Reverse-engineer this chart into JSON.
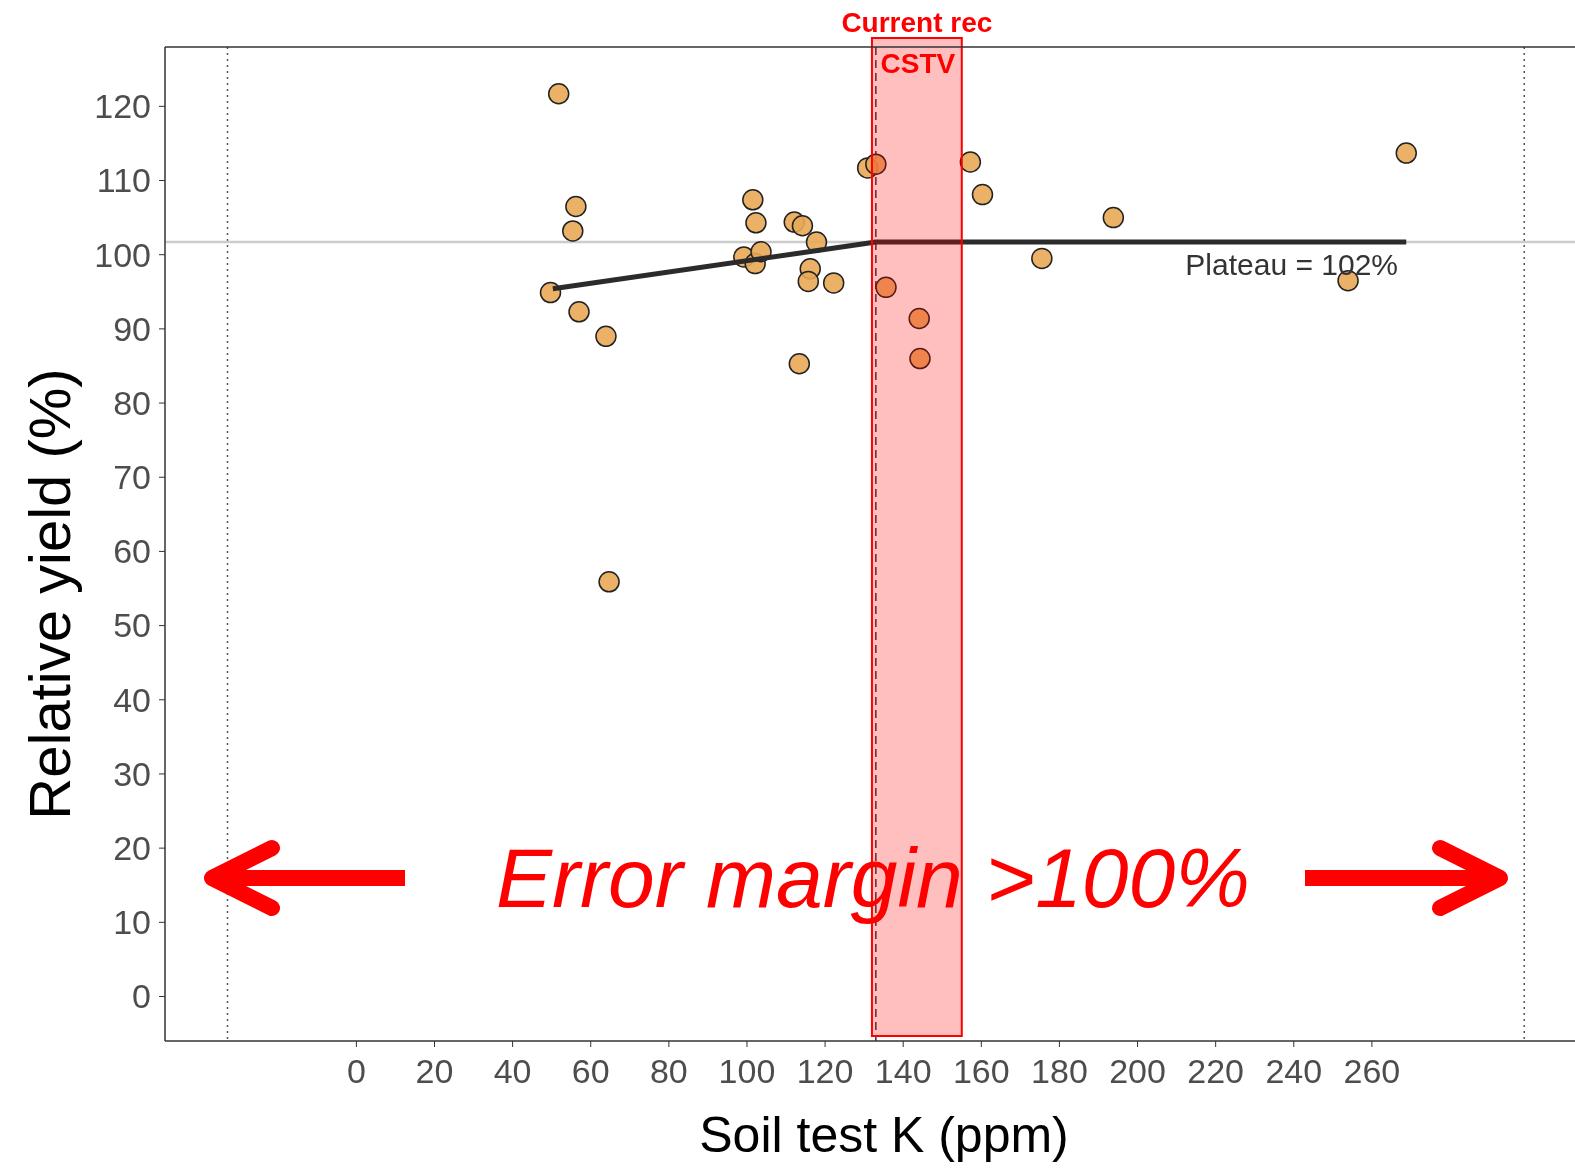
{
  "chart_data": {
    "type": "scatter",
    "xlabel": "Soil test K (ppm)",
    "ylabel": "Relative yield (%)",
    "xlim": [
      -49,
      312
    ],
    "ylim": [
      -6,
      128
    ],
    "xticks": [
      0,
      20,
      40,
      60,
      80,
      100,
      120,
      140,
      160,
      180,
      200,
      220,
      240,
      260
    ],
    "yticks": [
      0,
      10,
      20,
      30,
      40,
      50,
      60,
      70,
      80,
      90,
      100,
      110,
      120
    ],
    "grid": false,
    "series": [
      {
        "marker": "circle",
        "color": "#e8a857",
        "x": [
          51.8,
          49.7,
          56.2,
          55.4,
          57.0,
          63.9,
          64.7,
          101.5,
          102.3,
          99.2,
          102.1,
          103.6,
          112.1,
          114.2,
          117.8,
          116.2,
          115.7,
          122.2,
          113.4,
          130.9,
          133.0,
          135.6,
          144.1,
          144.3,
          157.2,
          160.3,
          175.5,
          193.8,
          253.9,
          268.8
        ],
        "values": [
          121.7,
          94.9,
          106.5,
          103.2,
          92.3,
          89.0,
          55.9,
          107.4,
          104.3,
          99.7,
          98.8,
          100.4,
          104.4,
          103.9,
          101.7,
          98.1,
          96.4,
          96.2,
          85.3,
          111.7,
          112.2,
          95.6,
          91.4,
          86.0,
          112.5,
          108.1,
          99.5,
          105.0,
          96.5,
          113.7
        ]
      },
      {
        "type": "line",
        "color": "#2b2b2b",
        "x": [
          50.3,
          133,
          268.8
        ],
        "values": [
          95.4,
          101.7,
          101.7
        ]
      }
    ],
    "ref_lines": [
      {
        "axis": "x",
        "value": -33,
        "label": null,
        "color": "#555555",
        "line_style": "dotted"
      },
      {
        "axis": "x",
        "value": 299,
        "label": null,
        "color": "#555555",
        "line_style": "dotted"
      },
      {
        "axis": "y",
        "value": 101.7,
        "label": null,
        "color": "#cccccc",
        "line_style": "solid"
      },
      {
        "axis": "x",
        "value": 133,
        "label": "CSTV",
        "color": "#333333",
        "line_style": "dashed"
      }
    ],
    "bands": [
      {
        "axis": "x",
        "from": 132,
        "to": 155,
        "label": "Current rec",
        "color": "#ff0000"
      }
    ],
    "annotations": [
      "Plateau = 102%",
      "Error margin >100%"
    ]
  }
}
